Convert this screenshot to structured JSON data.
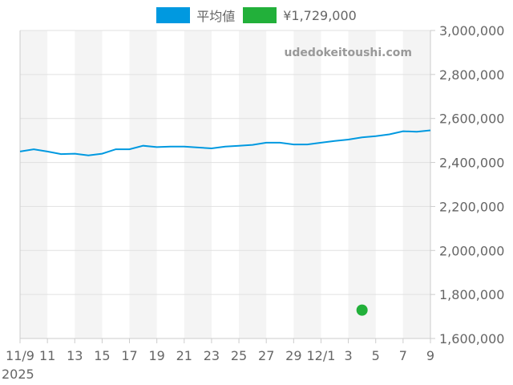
{
  "legend": [
    {
      "label": "平均値",
      "color": "#0099e0"
    },
    {
      "label": "¥1,729,000",
      "color": "#22b03a"
    }
  ],
  "watermark": "udedokeitoushi.com",
  "chart_data": {
    "type": "line",
    "title": "",
    "xlabel": "",
    "ylabel": "",
    "x_tick_labels": [
      "11/9",
      "11",
      "13",
      "15",
      "17",
      "19",
      "21",
      "23",
      "25",
      "27",
      "29",
      "12/1",
      "3",
      "5",
      "7",
      "9"
    ],
    "x_year_label": "2025",
    "y_tick_labels": [
      "3,000,000",
      "2,800,000",
      "2,600,000",
      "2,400,000",
      "2,200,000",
      "2,000,000",
      "1,800,000",
      "1,600,000"
    ],
    "ylim": [
      1600000,
      3000000
    ],
    "y_axis_position": "right",
    "grid": true,
    "legend_position": "top",
    "x": [
      "11/9",
      "11/10",
      "11/11",
      "11/12",
      "11/13",
      "11/14",
      "11/15",
      "11/16",
      "11/17",
      "11/18",
      "11/19",
      "11/20",
      "11/21",
      "11/22",
      "11/23",
      "11/24",
      "11/25",
      "11/26",
      "11/27",
      "11/28",
      "11/29",
      "11/30",
      "12/1",
      "12/2",
      "12/3",
      "12/4",
      "12/5",
      "12/6",
      "12/7",
      "12/8",
      "12/9"
    ],
    "series": [
      {
        "name": "平均値",
        "color": "#0099e0",
        "values": [
          2450000,
          2460000,
          2450000,
          2438000,
          2440000,
          2432000,
          2440000,
          2460000,
          2460000,
          2476000,
          2470000,
          2472000,
          2472000,
          2468000,
          2464000,
          2472000,
          2476000,
          2480000,
          2490000,
          2490000,
          2482000,
          2482000,
          2490000,
          2498000,
          2504000,
          2514000,
          2520000,
          2528000,
          2542000,
          2540000,
          2546000
        ]
      },
      {
        "name": "¥1,729,000",
        "color": "#22b03a",
        "type": "scatter",
        "points": [
          {
            "x": "12/4",
            "y": 1729000
          }
        ]
      }
    ]
  }
}
